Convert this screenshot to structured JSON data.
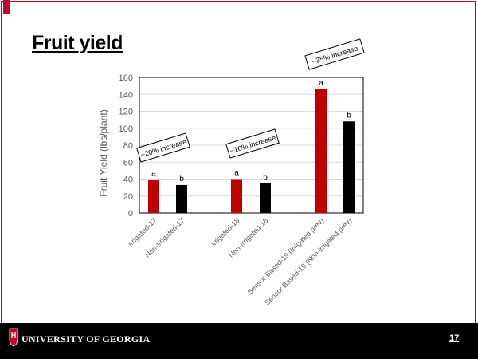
{
  "slide": {
    "title": "Fruit yield",
    "footer_text": "UNIVERSITY OF GEORGIA",
    "page_number": "17",
    "logo_icon": "uga-shield-logo-icon",
    "accent_color": "#ba0c2f"
  },
  "chart_data": {
    "type": "bar",
    "title": "",
    "xlabel": "",
    "ylabel": "Fruit Yield (lbs/plant)",
    "ylim": [
      0,
      160
    ],
    "yticks": [
      0,
      20,
      40,
      60,
      80,
      100,
      120,
      140,
      160
    ],
    "grid": true,
    "legend": "none",
    "categories": [
      "Irrigated-17",
      "Non-Irrigated-17",
      "Irrigated-18",
      "Non-Irrigated-18",
      "Sensor Based-19 (Irrigated prev)",
      "Sensor Based-19 (Non-irrigated prev)"
    ],
    "values": [
      39,
      33,
      40,
      35,
      146,
      108
    ],
    "colors": [
      "#c00000",
      "#000000",
      "#c00000",
      "#000000",
      "#c00000",
      "#000000"
    ],
    "letters": [
      "a",
      "b",
      "a",
      "b",
      "a",
      "b"
    ],
    "annotations": [
      "~20% increase",
      "~16% increase",
      "~35% increase"
    ]
  }
}
